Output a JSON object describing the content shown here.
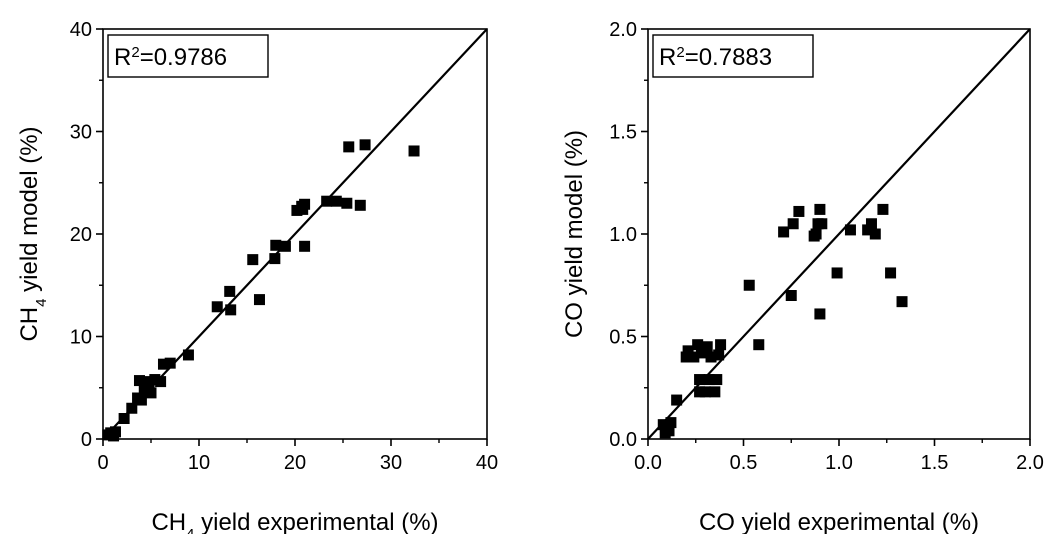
{
  "chart_data": [
    {
      "type": "scatter",
      "xlabel": {
        "pre": "CH",
        "sub": "4",
        "post": " yield experimental (%)"
      },
      "ylabel": {
        "pre": "CH",
        "sub": "4",
        "post": " yield model (%)"
      },
      "annotation": {
        "pre": "R",
        "sup": "2",
        "post": "=0.9786"
      },
      "xlim": [
        0,
        40
      ],
      "ylim": [
        0,
        40
      ],
      "xticks": [
        0,
        10,
        20,
        30,
        40
      ],
      "yticks": [
        0,
        10,
        20,
        30,
        40
      ],
      "xtick_labels": [
        "0",
        "10",
        "20",
        "30",
        "40"
      ],
      "ytick_labels": [
        "0",
        "10",
        "20",
        "30",
        "40"
      ],
      "line": {
        "x": [
          0,
          40
        ],
        "y": [
          0,
          40
        ]
      },
      "points": [
        [
          0.5,
          0.4
        ],
        [
          0.8,
          0.6
        ],
        [
          1.0,
          0.5
        ],
        [
          1.3,
          0.7
        ],
        [
          1.1,
          0.3
        ],
        [
          2.2,
          2.0
        ],
        [
          3.0,
          3.0
        ],
        [
          3.6,
          4.0
        ],
        [
          3.8,
          5.7
        ],
        [
          4.0,
          3.8
        ],
        [
          4.3,
          4.8
        ],
        [
          4.5,
          5.6
        ],
        [
          4.8,
          5.2
        ],
        [
          5.0,
          4.5
        ],
        [
          5.4,
          5.8
        ],
        [
          6.0,
          5.6
        ],
        [
          6.3,
          7.3
        ],
        [
          7.0,
          7.4
        ],
        [
          8.9,
          8.2
        ],
        [
          11.9,
          12.9
        ],
        [
          13.3,
          12.6
        ],
        [
          13.2,
          14.4
        ],
        [
          15.6,
          17.5
        ],
        [
          16.3,
          13.6
        ],
        [
          17.9,
          17.6
        ],
        [
          18.0,
          18.9
        ],
        [
          19.0,
          18.8
        ],
        [
          20.2,
          22.3
        ],
        [
          20.7,
          22.7
        ],
        [
          21.0,
          22.9
        ],
        [
          21.0,
          18.8
        ],
        [
          20.8,
          22.4
        ],
        [
          23.3,
          23.2
        ],
        [
          24.3,
          23.2
        ],
        [
          25.4,
          23.0
        ],
        [
          25.6,
          28.5
        ],
        [
          26.8,
          22.8
        ],
        [
          27.3,
          28.7
        ],
        [
          32.4,
          28.1
        ]
      ]
    },
    {
      "type": "scatter",
      "xlabel": {
        "pre": "CO yield experimental (%)",
        "sub": "",
        "post": ""
      },
      "ylabel": {
        "pre": "CO yield model (%)",
        "sub": "",
        "post": ""
      },
      "annotation": {
        "pre": "R",
        "sup": "2",
        "post": "=0.7883"
      },
      "xlim": [
        0,
        2.0
      ],
      "ylim": [
        0,
        2.0
      ],
      "xticks": [
        0,
        0.5,
        1.0,
        1.5,
        2.0
      ],
      "yticks": [
        0,
        0.5,
        1.0,
        1.5,
        2.0
      ],
      "xtick_labels": [
        "0.0",
        "0.5",
        "1.0",
        "1.5",
        "2.0"
      ],
      "ytick_labels": [
        "0.0",
        "0.5",
        "1.0",
        "1.5",
        "2.0"
      ],
      "line": {
        "x": [
          0,
          2.0
        ],
        "y": [
          0,
          2.0
        ]
      },
      "points": [
        [
          0.08,
          0.07
        ],
        [
          0.09,
          0.03
        ],
        [
          0.1,
          0.05
        ],
        [
          0.11,
          0.04
        ],
        [
          0.12,
          0.08
        ],
        [
          0.15,
          0.19
        ],
        [
          0.2,
          0.4
        ],
        [
          0.21,
          0.43
        ],
        [
          0.24,
          0.4
        ],
        [
          0.26,
          0.46
        ],
        [
          0.27,
          0.23
        ],
        [
          0.27,
          0.29
        ],
        [
          0.28,
          0.42
        ],
        [
          0.29,
          0.44
        ],
        [
          0.3,
          0.23
        ],
        [
          0.31,
          0.45
        ],
        [
          0.32,
          0.29
        ],
        [
          0.33,
          0.4
        ],
        [
          0.35,
          0.23
        ],
        [
          0.36,
          0.29
        ],
        [
          0.37,
          0.41
        ],
        [
          0.38,
          0.46
        ],
        [
          0.53,
          0.75
        ],
        [
          0.58,
          0.46
        ],
        [
          0.71,
          1.01
        ],
        [
          0.75,
          0.7
        ],
        [
          0.76,
          1.05
        ],
        [
          0.79,
          1.11
        ],
        [
          0.87,
          0.99
        ],
        [
          0.88,
          1.0
        ],
        [
          0.9,
          1.12
        ],
        [
          0.9,
          0.61
        ],
        [
          0.91,
          1.05
        ],
        [
          0.99,
          0.81
        ],
        [
          1.06,
          1.02
        ],
        [
          1.15,
          1.02
        ],
        [
          1.17,
          1.05
        ],
        [
          1.19,
          1.0
        ],
        [
          1.23,
          1.12
        ],
        [
          1.27,
          0.81
        ],
        [
          1.33,
          0.67
        ],
        [
          0.89,
          1.05
        ]
      ]
    }
  ]
}
